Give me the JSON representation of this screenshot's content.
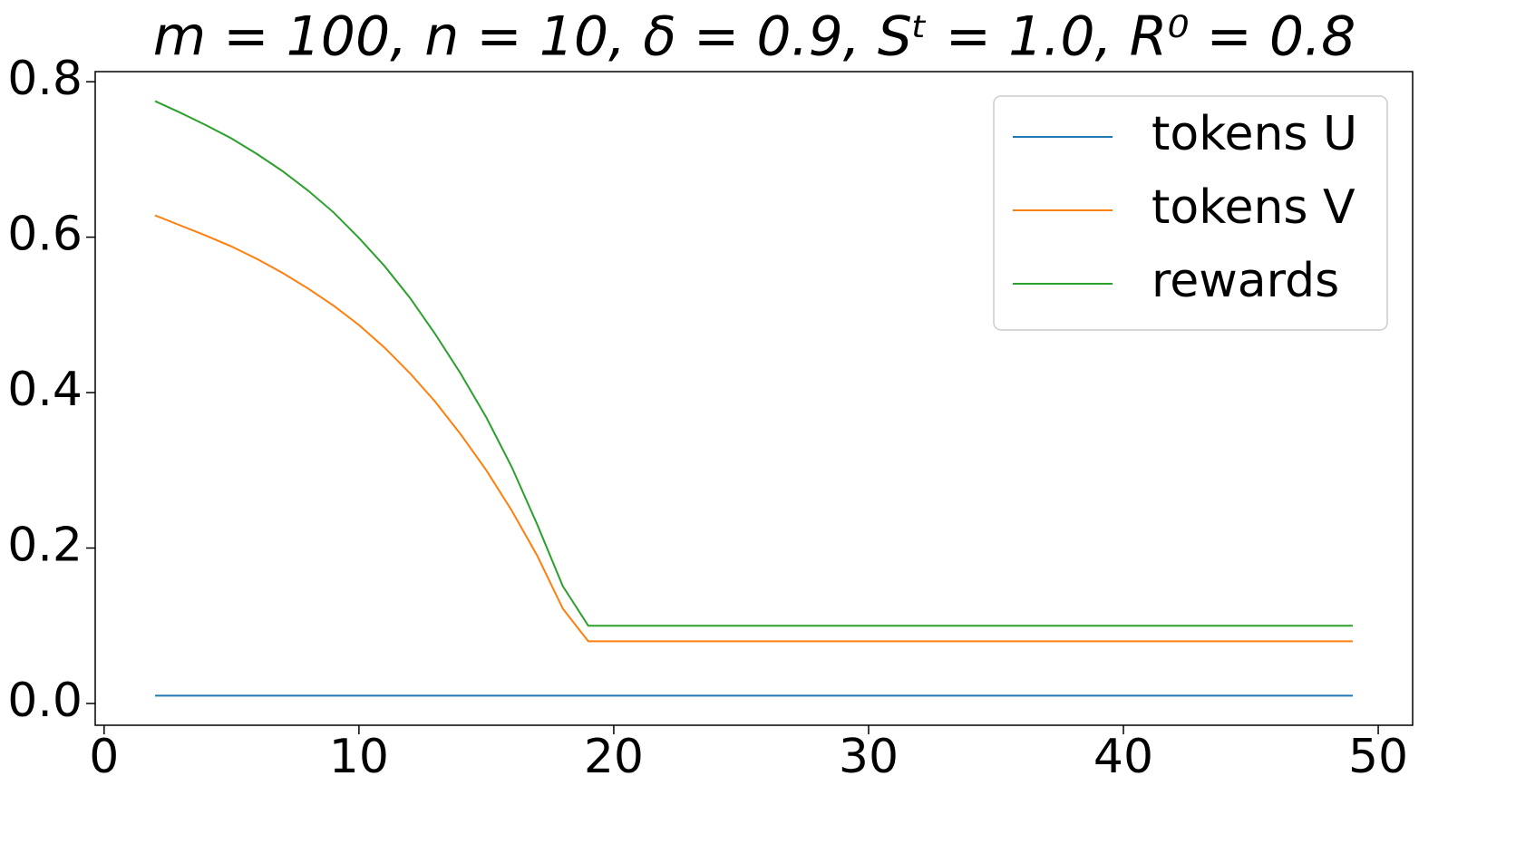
{
  "chart_data": {
    "type": "line",
    "title": "m = 100, n = 10, δ = 0.9, Sᵗ = 1.0, R⁰ = 0.8",
    "x": [
      2,
      3,
      4,
      5,
      6,
      7,
      8,
      9,
      10,
      11,
      12,
      13,
      14,
      15,
      16,
      17,
      18,
      19,
      20,
      21,
      22,
      23,
      24,
      25,
      26,
      27,
      28,
      29,
      30,
      31,
      32,
      33,
      34,
      35,
      36,
      37,
      38,
      39,
      40,
      41,
      42,
      43,
      44,
      45,
      46,
      47,
      48,
      49
    ],
    "series": [
      {
        "name": "tokens U",
        "color": "#1f77b4",
        "values": [
          0.01,
          0.01,
          0.01,
          0.01,
          0.01,
          0.01,
          0.01,
          0.01,
          0.01,
          0.01,
          0.01,
          0.01,
          0.01,
          0.01,
          0.01,
          0.01,
          0.01,
          0.01,
          0.01,
          0.01,
          0.01,
          0.01,
          0.01,
          0.01,
          0.01,
          0.01,
          0.01,
          0.01,
          0.01,
          0.01,
          0.01,
          0.01,
          0.01,
          0.01,
          0.01,
          0.01,
          0.01,
          0.01,
          0.01,
          0.01,
          0.01,
          0.01,
          0.01,
          0.01,
          0.01,
          0.01,
          0.01,
          0.01
        ]
      },
      {
        "name": "tokens V",
        "color": "#ff7f0e",
        "values": [
          0.628,
          0.615,
          0.602,
          0.588,
          0.572,
          0.554,
          0.534,
          0.512,
          0.487,
          0.458,
          0.425,
          0.388,
          0.346,
          0.3,
          0.248,
          0.19,
          0.122,
          0.08,
          0.08,
          0.08,
          0.08,
          0.08,
          0.08,
          0.08,
          0.08,
          0.08,
          0.08,
          0.08,
          0.08,
          0.08,
          0.08,
          0.08,
          0.08,
          0.08,
          0.08,
          0.08,
          0.08,
          0.08,
          0.08,
          0.08,
          0.08,
          0.08,
          0.08,
          0.08,
          0.08,
          0.08,
          0.08,
          0.08
        ]
      },
      {
        "name": "rewards",
        "color": "#2ca02c",
        "values": [
          0.775,
          0.76,
          0.744,
          0.727,
          0.707,
          0.685,
          0.66,
          0.632,
          0.599,
          0.563,
          0.522,
          0.475,
          0.424,
          0.368,
          0.304,
          0.23,
          0.151,
          0.1,
          0.1,
          0.1,
          0.1,
          0.1,
          0.1,
          0.1,
          0.1,
          0.1,
          0.1,
          0.1,
          0.1,
          0.1,
          0.1,
          0.1,
          0.1,
          0.1,
          0.1,
          0.1,
          0.1,
          0.1,
          0.1,
          0.1,
          0.1,
          0.1,
          0.1,
          0.1,
          0.1,
          0.1,
          0.1,
          0.1
        ]
      }
    ],
    "xlim": [
      -0.35,
      51.35
    ],
    "xticks": [
      0,
      10,
      20,
      30,
      40,
      50
    ],
    "ylim": [
      -0.028,
      0.813
    ],
    "yticks": [
      {
        "value": 0,
        "label": "0.0"
      },
      0.2,
      0.4,
      0.6,
      0.8
    ],
    "legend": "upper right"
  }
}
